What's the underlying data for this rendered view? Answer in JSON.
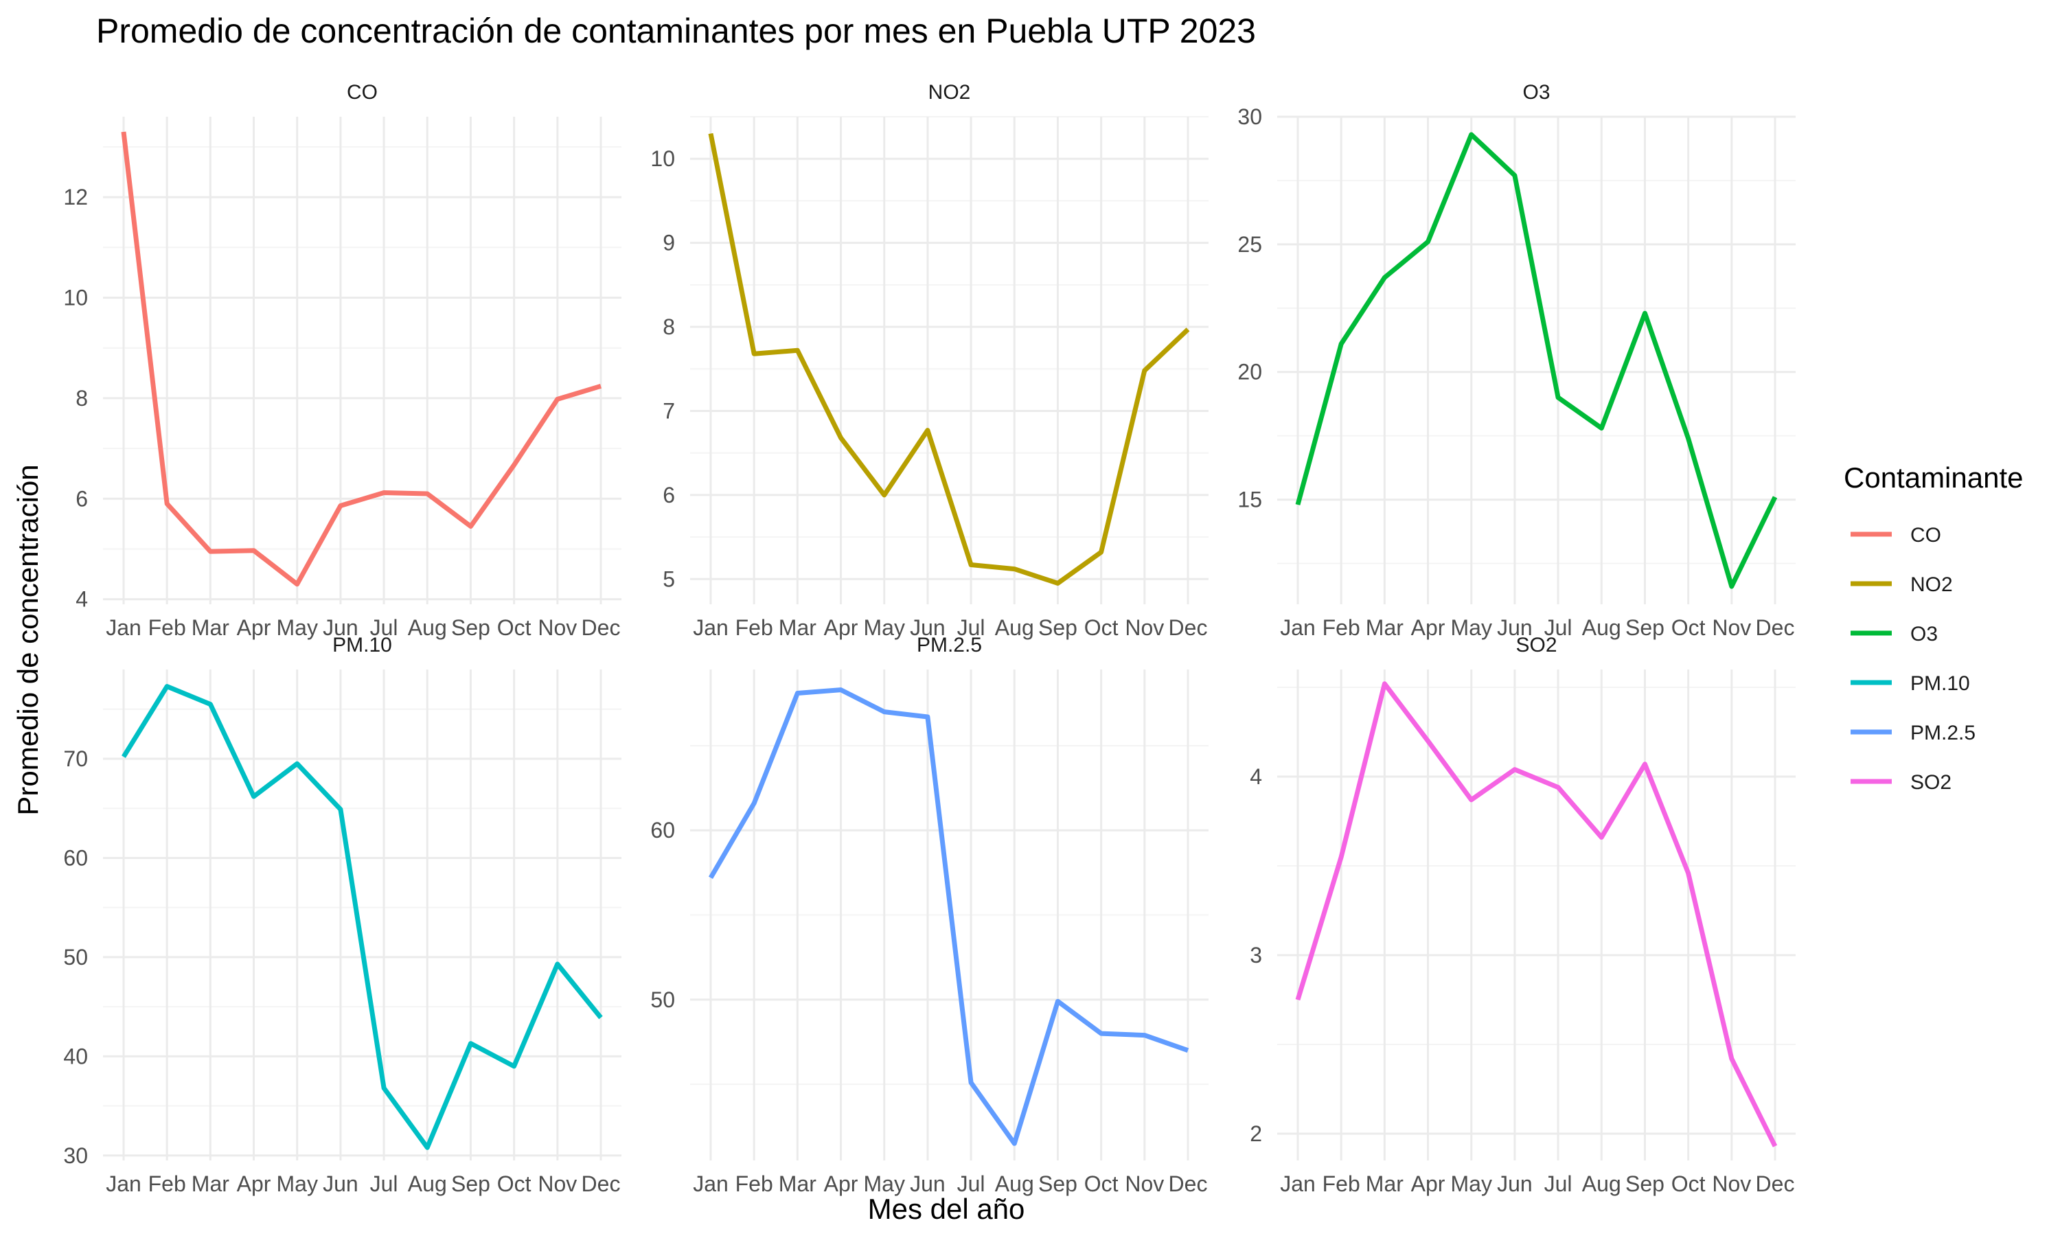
{
  "chart_data": {
    "type": "line",
    "title": "Promedio de concentración de contaminantes por mes en Puebla UTP 2023",
    "xlabel": "Mes del año",
    "ylabel": "Promedio de concentración",
    "legend": {
      "title": "Contaminante",
      "position": "right"
    },
    "grid": true,
    "categories": [
      "Jan",
      "Feb",
      "Mar",
      "Apr",
      "May",
      "Jun",
      "Jul",
      "Aug",
      "Sep",
      "Oct",
      "Nov",
      "Dec"
    ],
    "facets": [
      {
        "name": "CO",
        "color": "#F8766D",
        "ylim": [
          3.9,
          13.6
        ],
        "yticks": [
          4,
          6,
          8,
          10,
          12
        ],
        "values": [
          13.3,
          5.9,
          4.95,
          4.97,
          4.3,
          5.86,
          6.12,
          6.1,
          5.45,
          6.67,
          7.98,
          8.24
        ]
      },
      {
        "name": "NO2",
        "color": "#B79F00",
        "ylim": [
          4.7,
          10.5
        ],
        "yticks": [
          5,
          6,
          7,
          8,
          9,
          10
        ],
        "values": [
          10.3,
          7.68,
          7.72,
          6.68,
          6.0,
          6.77,
          5.17,
          5.12,
          4.95,
          5.32,
          7.48,
          7.97
        ]
      },
      {
        "name": "O3",
        "color": "#00BA38",
        "ylim": [
          10.9,
          30.0
        ],
        "yticks": [
          15,
          20,
          25,
          30
        ],
        "values": [
          14.8,
          21.1,
          23.7,
          25.1,
          29.3,
          27.7,
          19.0,
          17.8,
          22.3,
          17.4,
          11.6,
          15.1
        ]
      },
      {
        "name": "PM.10",
        "color": "#00BFC4",
        "ylim": [
          29.5,
          79.0
        ],
        "yticks": [
          30,
          40,
          50,
          60,
          70
        ],
        "values": [
          70.2,
          77.3,
          75.5,
          66.2,
          69.5,
          64.9,
          36.8,
          30.8,
          41.3,
          39.0,
          49.3,
          43.9
        ]
      },
      {
        "name": "PM.2.5",
        "color": "#619CFF",
        "ylim": [
          40.5,
          69.5
        ],
        "yticks": [
          50,
          60
        ],
        "values": [
          57.2,
          61.6,
          68.1,
          68.3,
          67.0,
          66.7,
          45.1,
          41.5,
          49.9,
          48.0,
          47.9,
          47.0
        ]
      },
      {
        "name": "SO2",
        "color": "#F564E3",
        "ylim": [
          1.85,
          4.6
        ],
        "yticks": [
          2,
          3,
          4
        ],
        "values": [
          2.75,
          3.55,
          4.52,
          4.2,
          3.87,
          4.04,
          3.94,
          3.66,
          4.07,
          3.46,
          2.42,
          1.93
        ]
      }
    ]
  }
}
